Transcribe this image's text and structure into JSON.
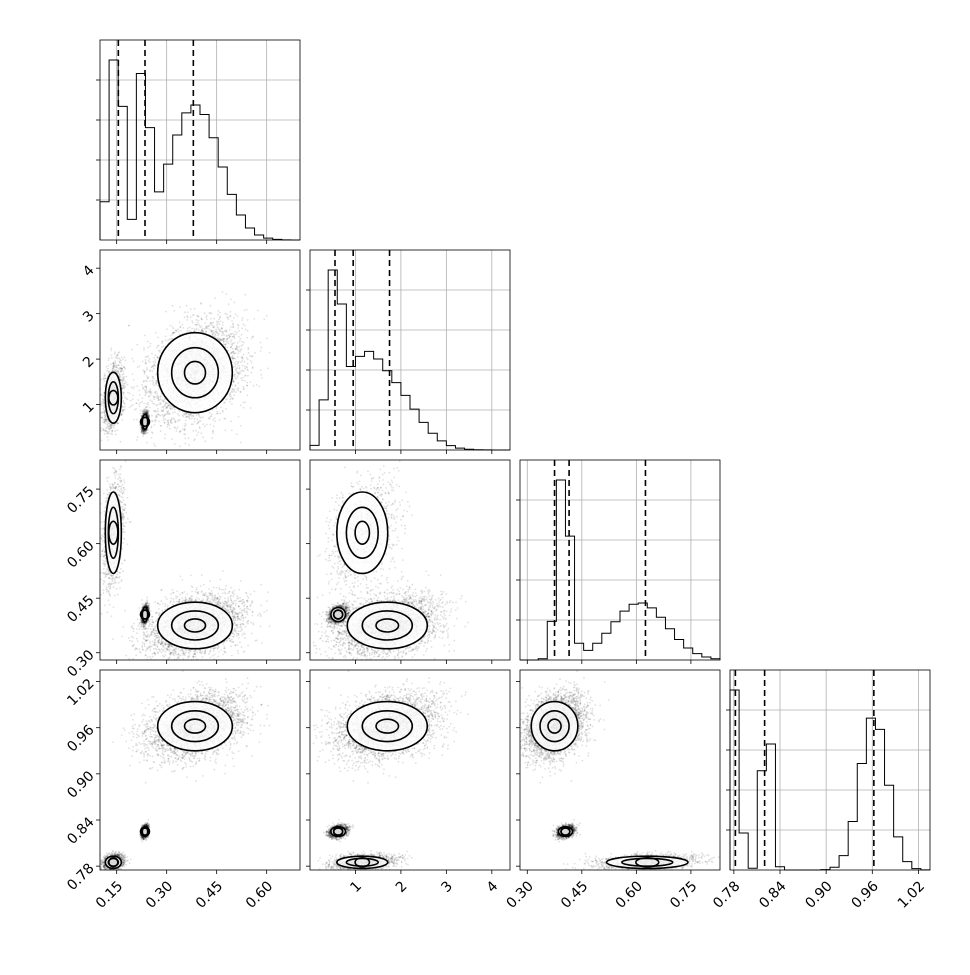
{
  "chart_data": {
    "type": "corner",
    "params": [
      {
        "range": [
          0.1,
          0.7
        ],
        "ticks": [
          0.15,
          0.3,
          0.45,
          0.6
        ],
        "tick_labels": [
          "0.15",
          "0.30",
          "0.45",
          "0.60"
        ],
        "show_ticklabels": true
      },
      {
        "range": [
          0.0,
          4.4
        ],
        "ticks": [
          1,
          2,
          3,
          4
        ],
        "tick_labels": [
          "1",
          "2",
          "3",
          "4"
        ],
        "show_ticklabels": true
      },
      {
        "range": [
          0.28,
          0.83
        ],
        "ticks": [
          0.3,
          0.45,
          0.6,
          0.75
        ],
        "tick_labels": [
          "0.30",
          "0.45",
          "0.60",
          "0.75"
        ],
        "show_ticklabels": true
      },
      {
        "range": [
          0.775,
          1.035
        ],
        "ticks": [
          0.78,
          0.84,
          0.9,
          0.96,
          1.02
        ],
        "tick_labels": [
          "0.78",
          "0.84",
          "0.90",
          "0.96",
          "1.02"
        ],
        "show_ticklabels": true
      }
    ],
    "histograms": [
      {
        "quantiles": [
          0.155,
          0.235,
          0.38
        ],
        "modes": [
          {
            "center": 0.15,
            "width": 0.02,
            "weight": 0.22
          },
          {
            "center": 0.235,
            "width": 0.008,
            "weight": 0.22
          },
          {
            "center": 0.385,
            "width": 0.075,
            "weight": 0.56
          }
        ]
      },
      {
        "quantiles": [
          0.55,
          0.95,
          1.75
        ],
        "modes": [
          {
            "center": 0.55,
            "width": 0.15,
            "weight": 0.3
          },
          {
            "center": 1.1,
            "width": 0.35,
            "weight": 0.22
          },
          {
            "center": 1.7,
            "width": 0.6,
            "weight": 0.48
          }
        ]
      },
      {
        "quantiles": [
          0.375,
          0.415,
          0.625
        ],
        "modes": [
          {
            "center": 0.4,
            "width": 0.018,
            "weight": 0.45
          },
          {
            "center": 0.61,
            "width": 0.075,
            "weight": 0.55
          }
        ]
      },
      {
        "quantiles": [
          0.782,
          0.82,
          0.962
        ],
        "modes": [
          {
            "center": 0.782,
            "width": 0.006,
            "weight": 0.22
          },
          {
            "center": 0.823,
            "width": 0.006,
            "weight": 0.22
          },
          {
            "center": 0.962,
            "width": 0.018,
            "weight": 0.56
          }
        ]
      }
    ],
    "clusters": [
      {
        "center": [
          0.14,
          1.15,
          0.63,
          0.785
        ],
        "spread": [
          0.015,
          0.35,
          0.07,
          0.005
        ],
        "weight": 0.22
      },
      {
        "center": [
          0.235,
          0.62,
          0.405,
          0.825
        ],
        "spread": [
          0.005,
          0.1,
          0.012,
          0.004
        ],
        "weight": 0.22
      },
      {
        "center": [
          0.385,
          1.7,
          0.375,
          0.962
        ],
        "spread": [
          0.07,
          0.55,
          0.04,
          0.02
        ],
        "weight": 0.56
      }
    ]
  }
}
